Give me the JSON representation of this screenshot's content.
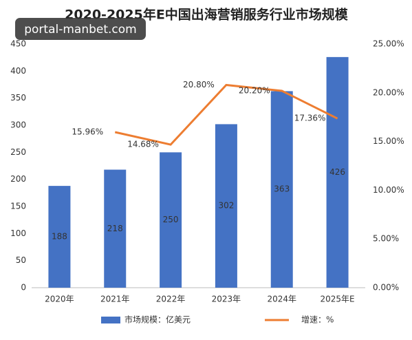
{
  "watermark": "portal-manbet.com",
  "chart_data": {
    "type": "bar",
    "title": "2020-2025年E中国出海营销服务行业市场规模",
    "categories": [
      "2020年",
      "2021年",
      "2022年",
      "2023年",
      "2024年",
      "2025年E"
    ],
    "series": [
      {
        "name": "市场规模：亿美元",
        "type": "bar",
        "color": "#4472c4",
        "values": [
          188,
          218,
          250,
          302,
          363,
          426
        ]
      },
      {
        "name": "增速：%",
        "type": "line",
        "axis": "y2",
        "color": "#ed7d31",
        "values": [
          null,
          15.96,
          14.68,
          20.8,
          20.2,
          17.36
        ],
        "value_labels": [
          null,
          "15.96%",
          "14.68%",
          "20.80%",
          "20.20%",
          "17.36%"
        ]
      }
    ],
    "ylim": [
      0,
      450
    ],
    "yticks": [
      0,
      50,
      100,
      150,
      200,
      250,
      300,
      350,
      400,
      450
    ],
    "y2lim": [
      0,
      25
    ],
    "y2ticks": [
      {
        "value": 0,
        "label": "0.00%"
      },
      {
        "value": 5,
        "label": "5.00%"
      },
      {
        "value": 10,
        "label": "10.00%"
      },
      {
        "value": 15,
        "label": "15.00%"
      },
      {
        "value": 20,
        "label": "20.00%"
      },
      {
        "value": 25,
        "label": "25.00%"
      }
    ],
    "grid": false,
    "legend": "bottom"
  }
}
